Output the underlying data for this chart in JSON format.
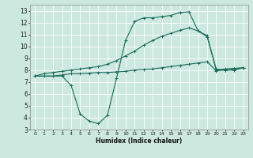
{
  "xlabel": "Humidex (Indice chaleur)",
  "background_color": "#cce8df",
  "grid_color": "#ffffff",
  "line_color": "#1a6b5a",
  "xlim": [
    -0.5,
    23.5
  ],
  "ylim": [
    3,
    13.5
  ],
  "xticks": [
    0,
    1,
    2,
    3,
    4,
    5,
    6,
    7,
    8,
    9,
    10,
    11,
    12,
    13,
    14,
    15,
    16,
    17,
    18,
    19,
    20,
    21,
    22,
    23
  ],
  "yticks": [
    3,
    4,
    5,
    6,
    7,
    8,
    9,
    10,
    11,
    12,
    13
  ],
  "line1_x": [
    0,
    1,
    2,
    3,
    4,
    5,
    6,
    7,
    8,
    9,
    10,
    11,
    12,
    13,
    14,
    15,
    16,
    17,
    18,
    19,
    20,
    21,
    22,
    23
  ],
  "line1_y": [
    7.5,
    7.5,
    7.5,
    7.6,
    7.7,
    7.7,
    7.75,
    7.8,
    7.8,
    7.85,
    7.9,
    8.0,
    8.05,
    8.1,
    8.2,
    8.3,
    8.4,
    8.5,
    8.6,
    8.7,
    7.95,
    8.0,
    8.1,
    8.2
  ],
  "line2_x": [
    0,
    1,
    2,
    3,
    4,
    5,
    6,
    7,
    8,
    9,
    10,
    11,
    12,
    13,
    14,
    15,
    16,
    17,
    18,
    19,
    20,
    21,
    22,
    23
  ],
  "line2_y": [
    7.5,
    7.7,
    7.8,
    7.9,
    8.0,
    8.1,
    8.2,
    8.3,
    8.5,
    8.8,
    9.2,
    9.6,
    10.1,
    10.5,
    10.85,
    11.1,
    11.35,
    11.55,
    11.3,
    10.8,
    8.1,
    8.0,
    8.0,
    8.2
  ],
  "line3_x": [
    0,
    2,
    3,
    4,
    5,
    6,
    7,
    8,
    9,
    10,
    11,
    12,
    13,
    14,
    15,
    16,
    17,
    18,
    19,
    20,
    21,
    22,
    23
  ],
  "line3_y": [
    7.5,
    7.5,
    7.5,
    6.7,
    4.3,
    3.7,
    3.5,
    4.2,
    7.3,
    10.5,
    12.1,
    12.4,
    12.4,
    12.5,
    12.6,
    12.85,
    12.9,
    11.3,
    10.9,
    8.0,
    8.1,
    8.15,
    8.2
  ]
}
